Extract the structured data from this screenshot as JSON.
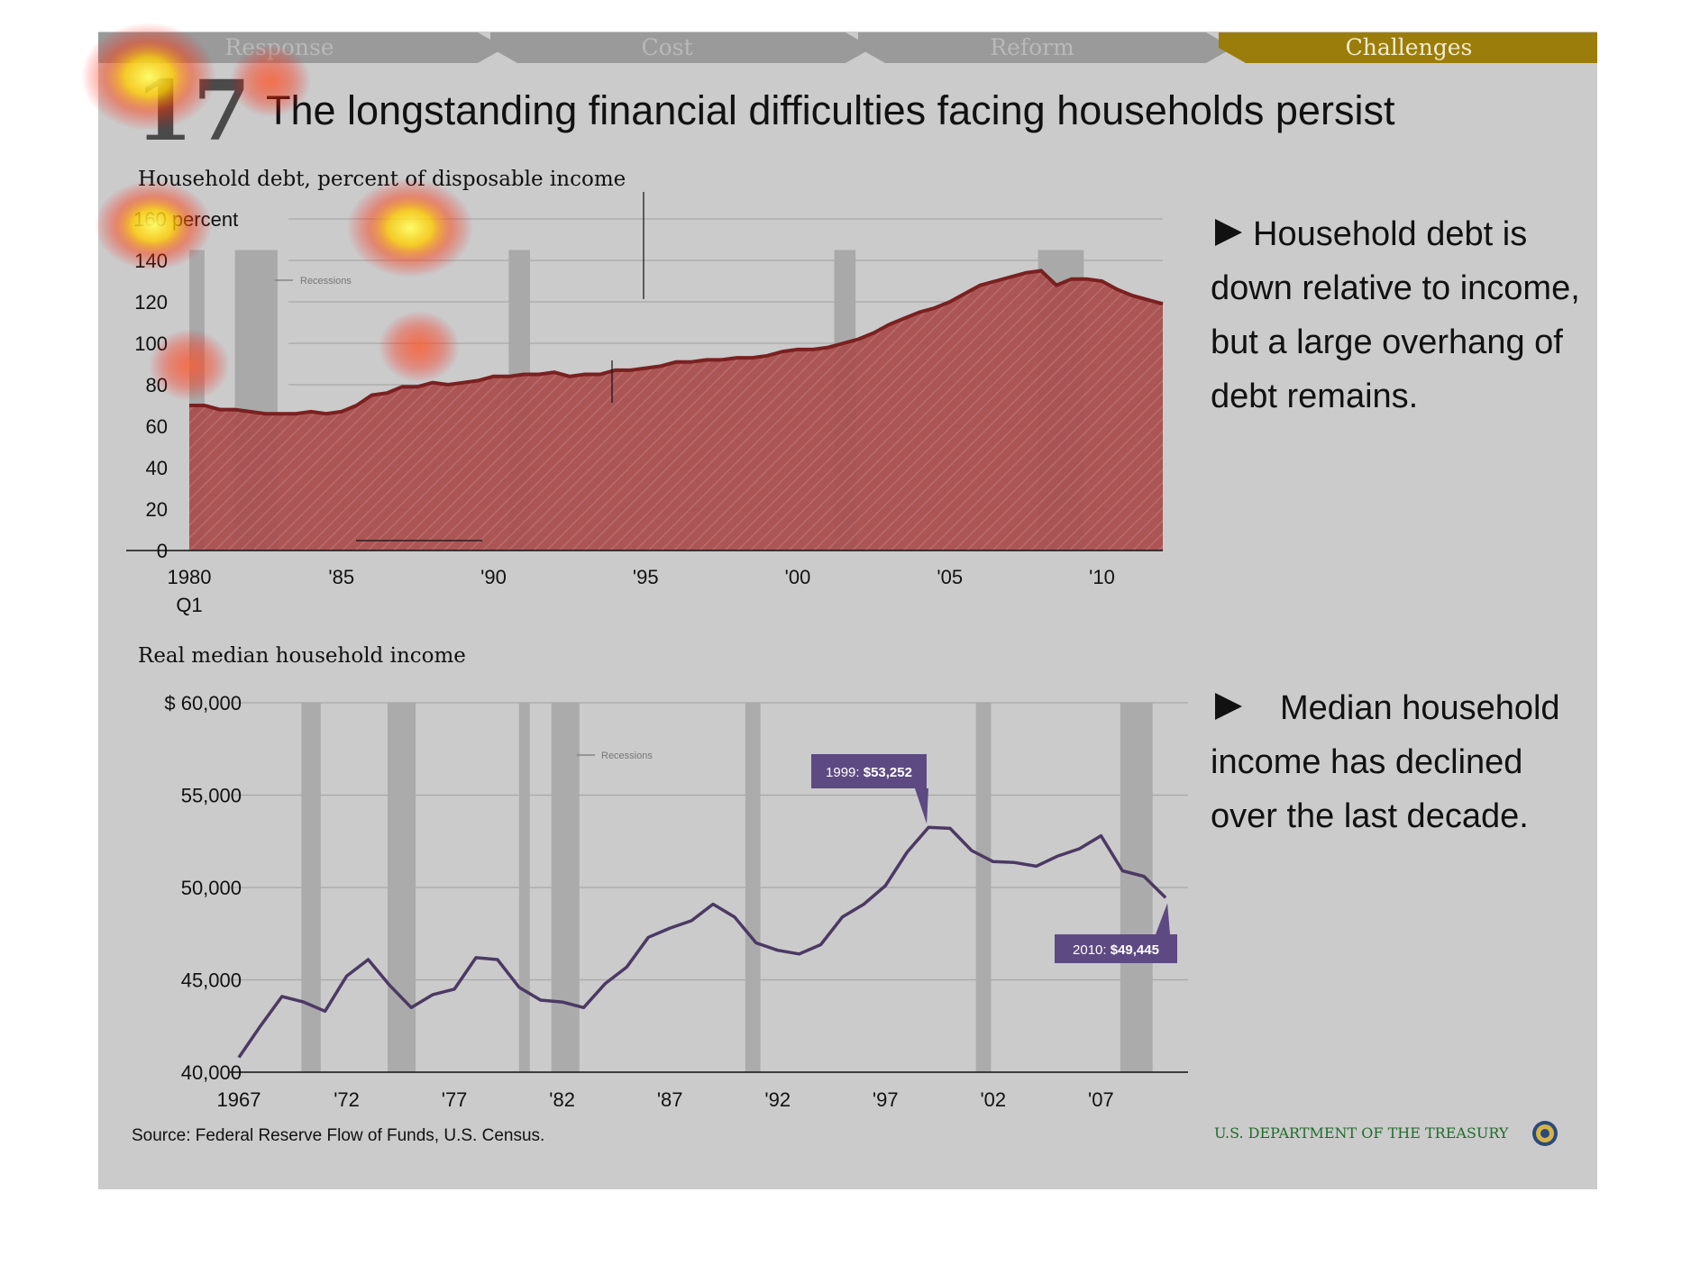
{
  "nav": {
    "tabs": [
      {
        "label": "Response",
        "active": false
      },
      {
        "label": "Cost",
        "active": false
      },
      {
        "label": "Reform",
        "active": false
      },
      {
        "label": "Challenges",
        "active": true
      }
    ],
    "inactive_color": "#9a9a9a",
    "active_color": "#9b7d0c"
  },
  "slide": {
    "number": "17",
    "title": "The longstanding financial difficulties facing households persist"
  },
  "notes": [
    {
      "lines": [
        "Household debt is",
        "down relative to income,",
        "but a large overhang of",
        "debt remains."
      ]
    },
    {
      "lines": [
        "Median household",
        "income has declined",
        "over the last decade."
      ]
    }
  ],
  "footer": {
    "source": "Source: Federal Reserve Flow of Funds, U.S. Census.",
    "agency": "U.S. DEPARTMENT OF THE TREASURY"
  },
  "chart_data": [
    {
      "type": "area",
      "title": "Household debt, percent of disposable income",
      "ylabel": "",
      "ylim": [
        0,
        160
      ],
      "y_ticks": [
        0,
        20,
        40,
        60,
        80,
        100,
        120,
        140,
        160
      ],
      "y_tick_labels": [
        "0",
        "20",
        "40",
        "60",
        "80",
        "100",
        "120",
        "140",
        "160 percent"
      ],
      "xlim": [
        1980,
        2012
      ],
      "x_ticks": [
        1980,
        1985,
        1990,
        1995,
        2000,
        2005,
        2010
      ],
      "x_tick_labels": [
        "1980",
        "'85",
        "'90",
        "'95",
        "'00",
        "'05",
        "'10"
      ],
      "x_first_sublabel": "Q1",
      "legend": "Recessions",
      "legend_placement": "top-left",
      "grid": true,
      "color": "#a84d4d",
      "line_color": "#7a2020",
      "recessions": [
        [
          1980.0,
          1980.5
        ],
        [
          1981.5,
          1982.9
        ],
        [
          1990.5,
          1991.2
        ],
        [
          2001.2,
          2001.9
        ],
        [
          2007.9,
          2009.4
        ]
      ],
      "x": [
        1980.0,
        1980.5,
        1981.0,
        1981.5,
        1982.0,
        1982.5,
        1983.0,
        1983.5,
        1984.0,
        1984.5,
        1985.0,
        1985.5,
        1986.0,
        1986.5,
        1987.0,
        1987.5,
        1988.0,
        1988.5,
        1989.0,
        1989.5,
        1990.0,
        1990.5,
        1991.0,
        1991.5,
        1992.0,
        1992.5,
        1993.0,
        1993.5,
        1994.0,
        1994.5,
        1995.0,
        1995.5,
        1996.0,
        1996.5,
        1997.0,
        1997.5,
        1998.0,
        1998.5,
        1999.0,
        1999.5,
        2000.0,
        2000.5,
        2001.0,
        2001.5,
        2002.0,
        2002.5,
        2003.0,
        2003.5,
        2004.0,
        2004.5,
        2005.0,
        2005.5,
        2006.0,
        2006.5,
        2007.0,
        2007.5,
        2008.0,
        2008.5,
        2009.0,
        2009.5,
        2010.0,
        2010.5,
        2011.0,
        2011.5,
        2012.0
      ],
      "values": [
        70,
        70,
        68,
        68,
        67,
        66,
        66,
        66,
        67,
        66,
        67,
        70,
        75,
        76,
        79,
        79,
        81,
        80,
        81,
        82,
        84,
        84,
        85,
        85,
        86,
        84,
        85,
        85,
        87,
        87,
        88,
        89,
        91,
        91,
        92,
        92,
        93,
        93,
        94,
        96,
        97,
        97,
        98,
        100,
        102,
        105,
        109,
        112,
        115,
        117,
        120,
        124,
        128,
        130,
        132,
        134,
        135,
        128,
        131,
        131,
        130,
        126,
        123,
        121,
        119
      ]
    },
    {
      "type": "line",
      "title": "Real median household income",
      "ylabel": "",
      "ylim": [
        40000,
        60000
      ],
      "y_ticks": [
        40000,
        45000,
        50000,
        55000,
        60000
      ],
      "y_tick_labels": [
        "40,000",
        "45,000",
        "50,000",
        "55,000",
        "$ 60,000"
      ],
      "xlim": [
        1967,
        2011
      ],
      "x_ticks": [
        1967,
        1972,
        1977,
        1982,
        1987,
        1992,
        1997,
        2002,
        2007
      ],
      "x_tick_labels": [
        "1967",
        "'72",
        "'77",
        "'82",
        "'87",
        "'92",
        "'97",
        "'02",
        "'07"
      ],
      "legend": "Recessions",
      "legend_placement": "top-center",
      "grid": true,
      "color": "#4a3a63",
      "recessions": [
        [
          1969.9,
          1970.8
        ],
        [
          1973.9,
          1975.2
        ],
        [
          1980.0,
          1980.5
        ],
        [
          1981.5,
          1982.8
        ],
        [
          1990.5,
          1991.2
        ],
        [
          2001.2,
          2001.9
        ],
        [
          2007.9,
          2009.4
        ]
      ],
      "x": [
        1967,
        1968,
        1969,
        1970,
        1971,
        1972,
        1973,
        1974,
        1975,
        1976,
        1977,
        1978,
        1979,
        1980,
        1981,
        1982,
        1983,
        1984,
        1985,
        1986,
        1987,
        1988,
        1989,
        1990,
        1991,
        1992,
        1993,
        1994,
        1995,
        1996,
        1997,
        1998,
        1999,
        2000,
        2001,
        2002,
        2003,
        2004,
        2005,
        2006,
        2007,
        2008,
        2009,
        2010
      ],
      "values": [
        40800,
        42500,
        44100,
        43800,
        43300,
        45200,
        46100,
        44700,
        43500,
        44200,
        44500,
        46200,
        46100,
        44600,
        43900,
        43800,
        43500,
        44800,
        45700,
        47300,
        47800,
        48200,
        49100,
        48400,
        47000,
        46600,
        46400,
        46900,
        48400,
        49100,
        50100,
        51900,
        53252,
        53200,
        52000,
        51400,
        51350,
        51150,
        51700,
        52100,
        52800,
        50900,
        50600,
        49445
      ],
      "callouts": [
        {
          "prefix": "1999: ",
          "value": "$53,252"
        },
        {
          "prefix": "2010: ",
          "value": "$49,445"
        }
      ],
      "callout_color": "#5d4a82"
    }
  ]
}
